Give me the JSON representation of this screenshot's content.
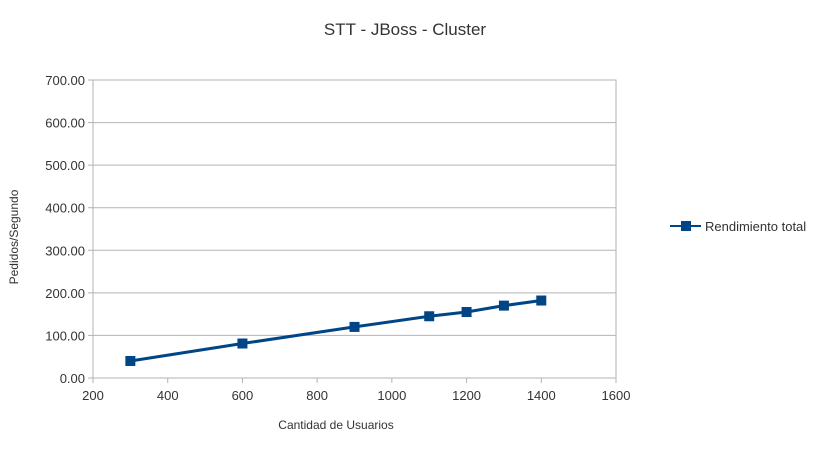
{
  "chart_data": {
    "type": "line",
    "title": "STT - JBoss - Cluster",
    "xlabel": "Cantidad de Usuarios",
    "ylabel": "Pedidos/Segundo",
    "xlim": [
      200,
      1600
    ],
    "ylim": [
      0,
      700
    ],
    "x_ticks": [
      "200",
      "400",
      "600",
      "800",
      "1000",
      "1200",
      "1400",
      "1600"
    ],
    "y_ticks": [
      "0.00",
      "100.00",
      "200.00",
      "300.00",
      "400.00",
      "500.00",
      "600.00",
      "700.00"
    ],
    "grid": true,
    "legend_position": "right",
    "series": [
      {
        "name": "Rendimiento total",
        "color": "#004586",
        "marker": "square",
        "x": [
          300,
          600,
          900,
          1100,
          1200,
          1300,
          1400
        ],
        "y": [
          40,
          81,
          120,
          145,
          155,
          170,
          182
        ]
      }
    ]
  }
}
